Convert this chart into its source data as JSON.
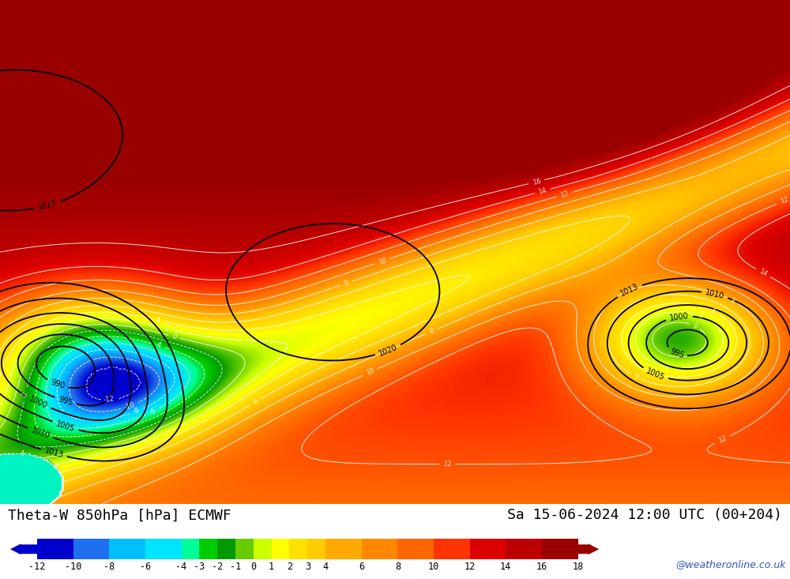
{
  "title_left": "Theta-W 850hPa [hPa] ECMWF",
  "title_right": "Sa 15-06-2024 12:00 UTC (00+204)",
  "watermark": "@weatheronline.co.uk",
  "colorbar_levels": [
    -12,
    -10,
    -8,
    -6,
    -4,
    -3,
    -2,
    -1,
    0,
    1,
    2,
    3,
    4,
    6,
    8,
    10,
    12,
    14,
    16,
    18
  ],
  "colorbar_colors": [
    "#0000cd",
    "#1e6ef0",
    "#00bfff",
    "#00e5ff",
    "#00ff99",
    "#00cc00",
    "#009900",
    "#66cc00",
    "#ccff00",
    "#ffff00",
    "#ffe000",
    "#ffcc00",
    "#ffaa00",
    "#ff8800",
    "#ff6600",
    "#ff3300",
    "#dd0000",
    "#bb0000",
    "#990000"
  ],
  "bg_color": "#ffffff",
  "fig_width": 10.0,
  "fig_height": 7.33,
  "dpi": 100
}
